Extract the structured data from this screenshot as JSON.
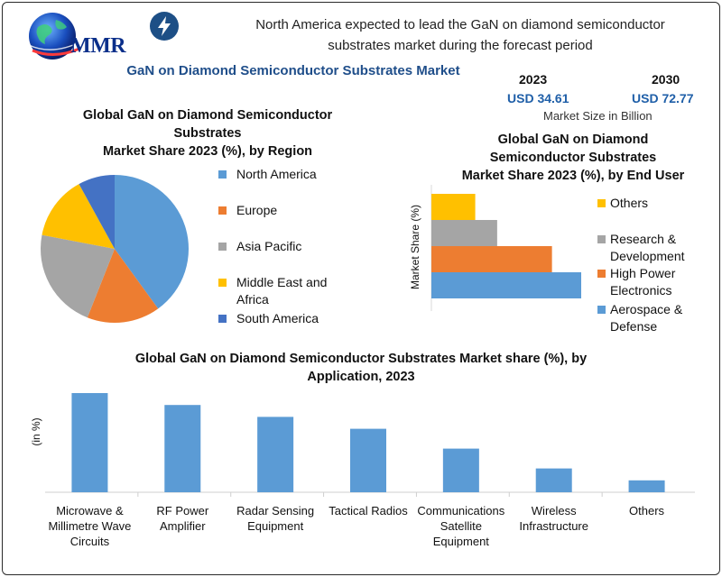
{
  "header": {
    "logo_text": "MMR",
    "headline_line1": "North America expected to lead the GaN on diamond semiconductor",
    "headline_line2": "substrates market during the forecast period",
    "title": "GaN on Diamond Semiconductor Substrates Market",
    "icon": "lightning-bolt-icon"
  },
  "market_size": {
    "year_start": "2023",
    "value_start": "USD 34.61",
    "year_end": "2030",
    "value_end": "USD 72.77",
    "caption": "Market Size in Billion"
  },
  "colors": {
    "blue": "#5B9BD5",
    "orange": "#ED7D31",
    "gray": "#A5A5A5",
    "yellow": "#FFC000",
    "dark_blue": "#4472C4"
  },
  "chart_data": [
    {
      "type": "pie",
      "title_line1": "Global GaN on Diamond Semiconductor",
      "title_line2": "Substrates",
      "title_line3": "Market Share 2023 (%), by Region",
      "categories": [
        "North America",
        "Europe",
        "Asia Pacific",
        "Middle East and Africa",
        "South America"
      ],
      "legend_lines": [
        [
          "North America"
        ],
        [
          "Europe"
        ],
        [
          "Asia Pacific"
        ],
        [
          "Middle East and",
          "Africa"
        ],
        [
          "South America"
        ]
      ],
      "values": [
        40,
        16,
        22,
        14,
        8
      ],
      "legend_position": "right"
    },
    {
      "type": "bar",
      "orientation": "horizontal",
      "title_line1": "Global GaN on Diamond",
      "title_line2": "Semiconductor Substrates",
      "title_line3": "Market Share 2023 (%), by End User",
      "ylabel": "Market Share (%)",
      "categories": [
        "Others",
        "Research & Development",
        "High Power Electronics",
        "Aerospace & Defense"
      ],
      "legend_lines": [
        [
          "Others"
        ],
        [
          "Research &",
          "Development"
        ],
        [
          "High Power",
          "Electronics"
        ],
        [
          "Aerospace &",
          "Defense"
        ]
      ],
      "values": [
        12,
        18,
        33,
        41
      ],
      "xlim": [
        0,
        45
      ],
      "legend_position": "right"
    },
    {
      "type": "bar",
      "title_line1": "Global GaN on Diamond Semiconductor Substrates Market share (%), by",
      "title_line2": "Application, 2023",
      "ylabel": "(in %)",
      "categories": [
        "Microwave & Millimetre Wave Circuits",
        "RF Power Amplifier",
        "Radar Sensing Equipment",
        "Tactical Radios",
        "Communications Satellite Equipment",
        "Wireless Infrastructure",
        "Others"
      ],
      "category_lines": [
        [
          "Microwave &",
          "Millimetre Wave",
          "Circuits"
        ],
        [
          "RF Power",
          "Amplifier"
        ],
        [
          "Radar Sensing",
          "Equipment"
        ],
        [
          "Tactical Radios"
        ],
        [
          "Communications",
          "Satellite",
          "Equipment"
        ],
        [
          "Wireless",
          "Infrastructure"
        ],
        [
          "Others"
        ]
      ],
      "values": [
        25,
        22,
        19,
        16,
        11,
        6,
        3
      ],
      "ylim": [
        0,
        25
      ]
    }
  ]
}
